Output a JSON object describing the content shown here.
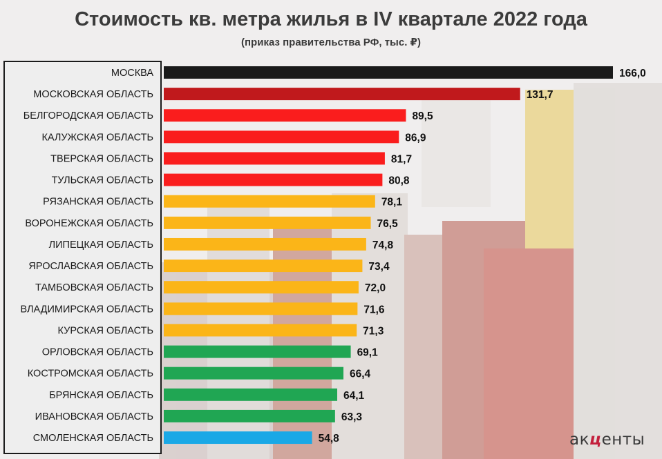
{
  "chart_data": {
    "type": "bar",
    "orientation": "horizontal",
    "title": "Стоимость кв. метра жилья в IV квартале 2022 года",
    "subtitle": "(приказ правительства РФ, тыс. ₽)",
    "categories": [
      "МОСКВА",
      "МОСКОВСКАЯ ОБЛАСТЬ",
      "БЕЛГОРОДСКАЯ ОБЛАСТЬ",
      "КАЛУЖСКАЯ ОБЛАСТЬ",
      "ТВЕРСКАЯ ОБЛАСТЬ",
      "ТУЛЬСКАЯ ОБЛАСТЬ",
      "РЯЗАНСКАЯ ОБЛАСТЬ",
      "ВОРОНЕЖСКАЯ ОБЛАСТЬ",
      "ЛИПЕЦКАЯ ОБЛАСТЬ",
      "ЯРОСЛАВСКАЯ ОБЛАСТЬ",
      "ТАМБОВСКАЯ ОБЛАСТЬ",
      "ВЛАДИМИРСКАЯ ОБЛАСТЬ",
      "КУРСКАЯ ОБЛАСТЬ",
      "ОРЛОВСКАЯ ОБЛАСТЬ",
      "КОСТРОМСКАЯ ОБЛАСТЬ",
      "БРЯНСКАЯ ОБЛАСТЬ",
      "ИВАНОВСКАЯ ОБЛАСТЬ",
      "СМОЛЕНСКАЯ ОБЛАСТЬ"
    ],
    "values": [
      166.0,
      131.7,
      89.5,
      86.9,
      81.7,
      80.8,
      78.1,
      76.5,
      74.8,
      73.4,
      72.0,
      71.6,
      71.3,
      69.1,
      66.4,
      64.1,
      63.3,
      54.8
    ],
    "value_labels": [
      "166,0",
      "131,7",
      "89,5",
      "86,9",
      "81,7",
      "80,8",
      "78,1",
      "76,5",
      "74,8",
      "73,4",
      "72,0",
      "71,6",
      "71,3",
      "69,1",
      "66,4",
      "64,1",
      "63,3",
      "54,8"
    ],
    "bar_colors": [
      "#1a1a1a",
      "#c0191c",
      "#fa1d1d",
      "#fa1d1d",
      "#fa1d1d",
      "#fa1d1d",
      "#fbb518",
      "#fbb518",
      "#fbb518",
      "#fbb518",
      "#fbb518",
      "#fbb518",
      "#fbb518",
      "#20a653",
      "#20a653",
      "#20a653",
      "#20a653",
      "#1aa8e6"
    ],
    "xlim": [
      0,
      166.0
    ],
    "grid": false,
    "legend": "none"
  },
  "branding": {
    "logo_left": "ак",
    "logo_mid": "ц",
    "logo_right": "енты"
  }
}
